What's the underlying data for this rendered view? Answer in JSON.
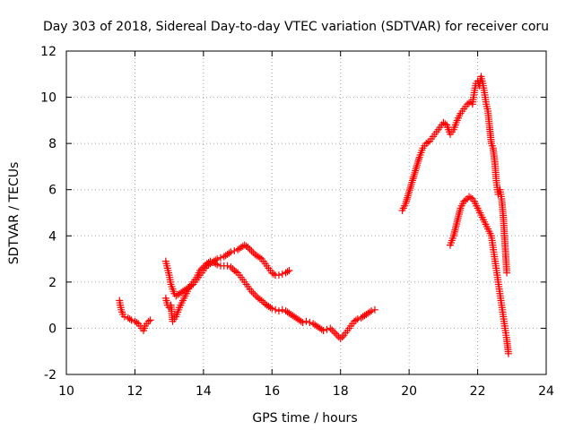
{
  "chart_data": {
    "type": "scatter",
    "title": "Day 303 of 2018, Sidereal Day-to-day VTEC variation (SDTVAR) for receiver coru",
    "xlabel": "GPS time / hours",
    "ylabel": "SDTVAR / TECUs",
    "xlim": [
      10,
      24
    ],
    "ylim": [
      -2,
      12
    ],
    "xticks": [
      "10",
      "12",
      "14",
      "16",
      "18",
      "20",
      "22",
      "24"
    ],
    "yticks": [
      "-2",
      "0",
      "2",
      "4",
      "6",
      "8",
      "10",
      "12"
    ],
    "grid": true,
    "marker": "plus",
    "color": "#ff0000",
    "series": [
      {
        "x": [
          11.55,
          11.6,
          11.65,
          11.7,
          11.8,
          11.9,
          12.0,
          12.1,
          12.2,
          12.25,
          12.3,
          12.35,
          12.4,
          12.45
        ],
        "y": [
          1.2,
          0.8,
          0.6,
          0.5,
          0.45,
          0.35,
          0.3,
          0.2,
          0.0,
          -0.1,
          0.1,
          0.2,
          0.3,
          0.35
        ]
      },
      {
        "x": [
          12.9,
          12.95,
          13.0,
          13.05,
          13.1,
          13.15,
          13.2,
          13.3,
          13.4,
          13.5,
          13.6,
          13.7,
          13.8,
          13.9,
          14.0,
          14.1,
          14.2,
          14.3,
          14.4,
          14.5,
          14.6,
          14.7,
          14.8,
          14.9,
          15.0,
          15.1,
          15.2,
          15.3,
          15.4,
          15.5,
          15.6,
          15.7,
          15.8,
          15.9,
          16.0,
          16.1,
          16.2,
          16.3,
          16.4,
          16.5
        ],
        "y": [
          2.9,
          2.6,
          2.3,
          1.9,
          1.7,
          1.5,
          1.4,
          1.5,
          1.6,
          1.7,
          1.8,
          1.9,
          2.1,
          2.3,
          2.5,
          2.7,
          2.8,
          2.9,
          3.0,
          3.05,
          3.1,
          3.2,
          3.3,
          3.35,
          3.4,
          3.5,
          3.6,
          3.5,
          3.35,
          3.2,
          3.1,
          3.0,
          2.8,
          2.6,
          2.4,
          2.3,
          2.3,
          2.35,
          2.4,
          2.5
        ]
      },
      {
        "x": [
          12.9,
          12.95,
          13.0,
          13.05,
          13.1,
          13.2,
          13.3,
          13.4,
          13.5,
          13.6,
          13.7,
          13.8,
          13.9,
          14.0,
          14.1,
          14.2,
          14.3,
          14.4,
          14.5,
          14.6,
          14.7,
          14.8,
          14.9,
          15.0,
          15.1,
          15.2,
          15.3,
          15.4,
          15.5,
          15.6,
          15.7,
          15.8,
          15.9,
          16.0,
          16.1,
          16.2,
          16.3,
          16.4,
          16.5,
          16.6,
          16.7,
          16.8,
          16.9,
          17.0,
          17.1,
          17.2,
          17.3,
          17.4,
          17.5,
          17.6,
          17.7,
          17.8,
          17.9,
          18.0,
          18.1,
          18.2,
          18.3,
          18.4,
          18.5,
          18.6,
          18.7,
          18.8,
          18.9,
          19.0
        ],
        "y": [
          1.3,
          1.0,
          0.9,
          1.0,
          0.3,
          0.5,
          0.9,
          1.2,
          1.5,
          1.8,
          2.0,
          2.2,
          2.5,
          2.65,
          2.8,
          2.9,
          2.85,
          2.75,
          2.7,
          2.7,
          2.7,
          2.65,
          2.5,
          2.4,
          2.2,
          2.0,
          1.8,
          1.6,
          1.45,
          1.3,
          1.2,
          1.05,
          0.95,
          0.85,
          0.8,
          0.75,
          0.8,
          0.75,
          0.65,
          0.55,
          0.45,
          0.35,
          0.25,
          0.3,
          0.25,
          0.2,
          0.1,
          0.0,
          -0.1,
          -0.05,
          0.0,
          -0.15,
          -0.3,
          -0.45,
          -0.3,
          -0.1,
          0.1,
          0.3,
          0.4,
          0.45,
          0.55,
          0.65,
          0.75,
          0.8
        ]
      },
      {
        "x": [
          19.8,
          19.9,
          20.0,
          20.1,
          20.2,
          20.3,
          20.4,
          20.5,
          20.6,
          20.7,
          20.8,
          20.9,
          21.0,
          21.1,
          21.15,
          21.2,
          21.3,
          21.4,
          21.5,
          21.6,
          21.7,
          21.8,
          21.85,
          21.9,
          21.95,
          22.0,
          22.05,
          22.1,
          22.15,
          22.2,
          22.25,
          22.3,
          22.4,
          22.45,
          22.5,
          22.55,
          22.6,
          22.65,
          22.7,
          22.75,
          22.8,
          22.85
        ],
        "y": [
          5.1,
          5.4,
          5.9,
          6.4,
          6.9,
          7.4,
          7.8,
          8.0,
          8.1,
          8.3,
          8.5,
          8.7,
          8.9,
          8.8,
          8.6,
          8.4,
          8.6,
          9.0,
          9.3,
          9.5,
          9.7,
          9.8,
          9.7,
          10.2,
          10.6,
          10.7,
          10.5,
          10.9,
          10.6,
          10.2,
          9.7,
          9.4,
          8.0,
          7.8,
          7.2,
          6.3,
          5.8,
          6.0,
          5.6,
          4.8,
          3.6,
          2.4
        ]
      },
      {
        "x": [
          21.2,
          21.25,
          21.3,
          21.4,
          21.5,
          21.6,
          21.7,
          21.75,
          21.8,
          21.85,
          21.9,
          22.0,
          22.1,
          22.2,
          22.3,
          22.4,
          22.45,
          22.5,
          22.55,
          22.6,
          22.65,
          22.7,
          22.75,
          22.8,
          22.85,
          22.9
        ],
        "y": [
          3.6,
          3.8,
          4.0,
          4.6,
          5.2,
          5.5,
          5.6,
          5.7,
          5.65,
          5.6,
          5.5,
          5.2,
          4.9,
          4.6,
          4.3,
          4.0,
          3.5,
          3.0,
          2.5,
          2.0,
          1.5,
          1.0,
          0.5,
          0.0,
          -0.5,
          -1.1
        ]
      }
    ]
  }
}
